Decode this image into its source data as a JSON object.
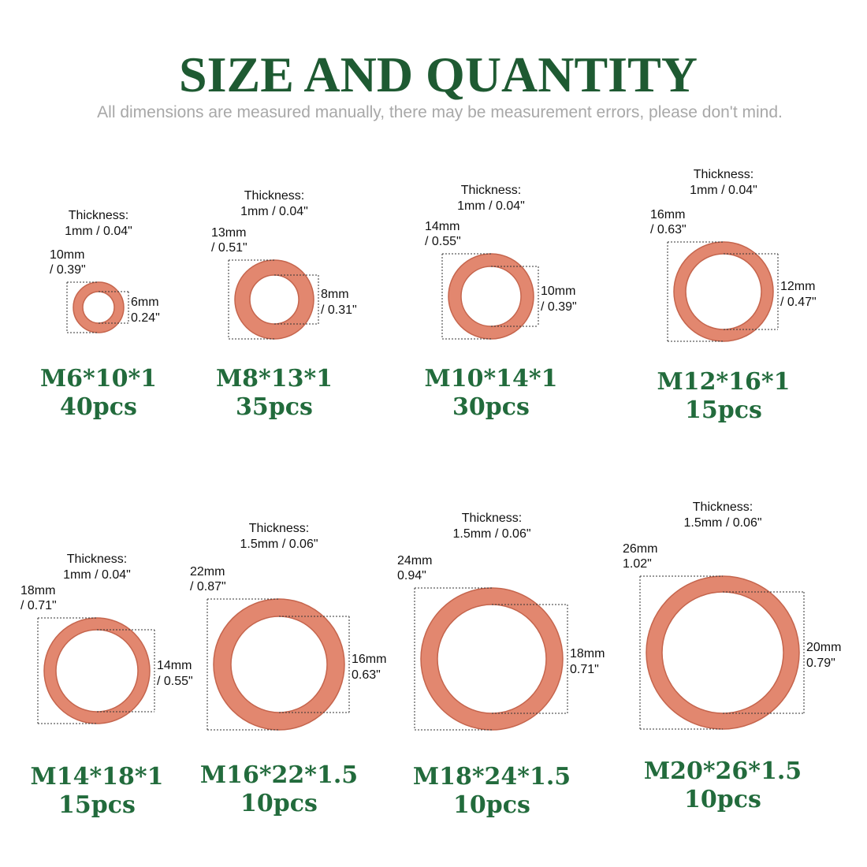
{
  "header": {
    "title": "SIZE AND QUANTITY",
    "subtitle": "All dimensions are measured manually, there may be measurement errors, please don't mind."
  },
  "items": [
    {
      "thickness_label": "Thickness:",
      "thickness": "1mm / 0.04\"",
      "outer": [
        "10mm",
        "/ 0.39\""
      ],
      "inner": [
        "6mm",
        "0.24\""
      ],
      "name": "M6*10*1",
      "qty": "40pcs"
    },
    {
      "thickness_label": "Thickness:",
      "thickness": "1mm / 0.04\"",
      "outer": [
        "13mm",
        "/ 0.51\""
      ],
      "inner": [
        "8mm",
        "/ 0.31\""
      ],
      "name": "M8*13*1",
      "qty": "35pcs"
    },
    {
      "thickness_label": "Thickness:",
      "thickness": "1mm / 0.04\"",
      "outer": [
        "14mm",
        "/ 0.55\""
      ],
      "inner": [
        "10mm",
        "/ 0.39\""
      ],
      "name": "M10*14*1",
      "qty": "30pcs"
    },
    {
      "thickness_label": "Thickness:",
      "thickness": "1mm / 0.04\"",
      "outer": [
        "16mm",
        "/ 0.63\""
      ],
      "inner": [
        "12mm",
        "/ 0.47\""
      ],
      "name": "M12*16*1",
      "qty": "15pcs"
    },
    {
      "thickness_label": "Thickness:",
      "thickness": "1mm / 0.04\"",
      "outer": [
        "18mm",
        "/ 0.71\""
      ],
      "inner": [
        "14mm",
        "/ 0.55\""
      ],
      "name": "M14*18*1",
      "qty": "15pcs"
    },
    {
      "thickness_label": "Thickness:",
      "thickness": "1.5mm / 0.06\"",
      "outer": [
        "22mm",
        "/ 0.87\""
      ],
      "inner": [
        "16mm",
        "0.63\""
      ],
      "name": "M16*22*1.5",
      "qty": "10pcs"
    },
    {
      "thickness_label": "Thickness:",
      "thickness": "1.5mm / 0.06\"",
      "outer": [
        "24mm",
        "0.94\""
      ],
      "inner": [
        "18mm",
        "0.71\""
      ],
      "name": "M18*24*1.5",
      "qty": "10pcs"
    },
    {
      "thickness_label": "Thickness:",
      "thickness": "1.5mm / 0.06\"",
      "outer": [
        "26mm",
        "1.02\""
      ],
      "inner": [
        "20mm",
        "0.79\""
      ],
      "name": "M20*26*1.5",
      "qty": "10pcs"
    }
  ]
}
